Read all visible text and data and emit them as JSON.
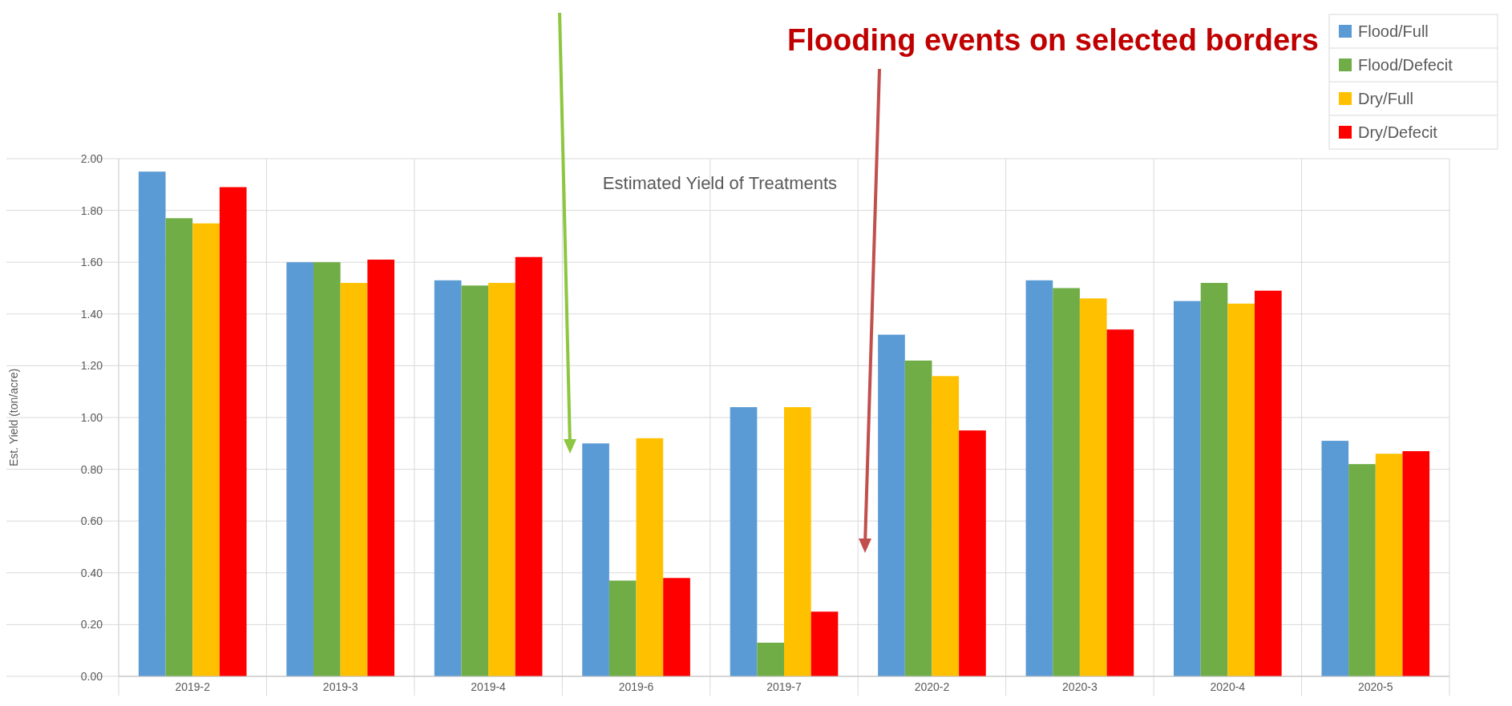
{
  "chart_data": {
    "type": "bar",
    "title": "Estimated Yield of Treatments",
    "ylabel": "Est. Yield (ton/acre)",
    "annotations": [
      "Flooding events on selected borders"
    ],
    "categories": [
      "2019-2",
      "2019-3",
      "2019-4",
      "2019-6",
      "2019-7",
      "2020-2",
      "2020-3",
      "2020-4",
      "2020-5"
    ],
    "series": [
      {
        "name": "Flood/Full",
        "color": "#5b9bd5",
        "values": [
          1.95,
          1.6,
          1.53,
          0.9,
          1.04,
          1.32,
          1.53,
          1.45,
          0.91
        ]
      },
      {
        "name": "Flood/Defecit",
        "color": "#70ad47",
        "values": [
          1.77,
          1.6,
          1.51,
          0.37,
          0.13,
          1.22,
          1.5,
          1.52,
          0.82
        ]
      },
      {
        "name": "Dry/Full",
        "color": "#ffc000",
        "values": [
          1.75,
          1.52,
          1.52,
          0.92,
          1.04,
          1.16,
          1.46,
          1.44,
          0.86
        ]
      },
      {
        "name": "Dry/Defecit",
        "color": "#ff0000",
        "values": [
          1.89,
          1.61,
          1.62,
          0.38,
          0.25,
          0.95,
          1.34,
          1.49,
          0.87
        ]
      }
    ],
    "ylim": [
      0,
      2
    ],
    "yticks": [
      {
        "value": 0,
        "label": "0.00"
      },
      {
        "value": 0.2,
        "label": "0.20"
      },
      {
        "value": 0.4,
        "label": "0.40"
      },
      {
        "value": 0.6,
        "label": "0.60"
      },
      {
        "value": 0.8,
        "label": "0.80"
      },
      {
        "value": 1,
        "label": "1.00"
      },
      {
        "value": 1.2,
        "label": "1.20"
      },
      {
        "value": 1.4,
        "label": "1.40"
      },
      {
        "value": 1.6,
        "label": "1.60"
      },
      {
        "value": 1.8,
        "label": "1.80"
      },
      {
        "value": 2,
        "label": "2.00"
      }
    ],
    "grid": true,
    "legend": "top right"
  }
}
